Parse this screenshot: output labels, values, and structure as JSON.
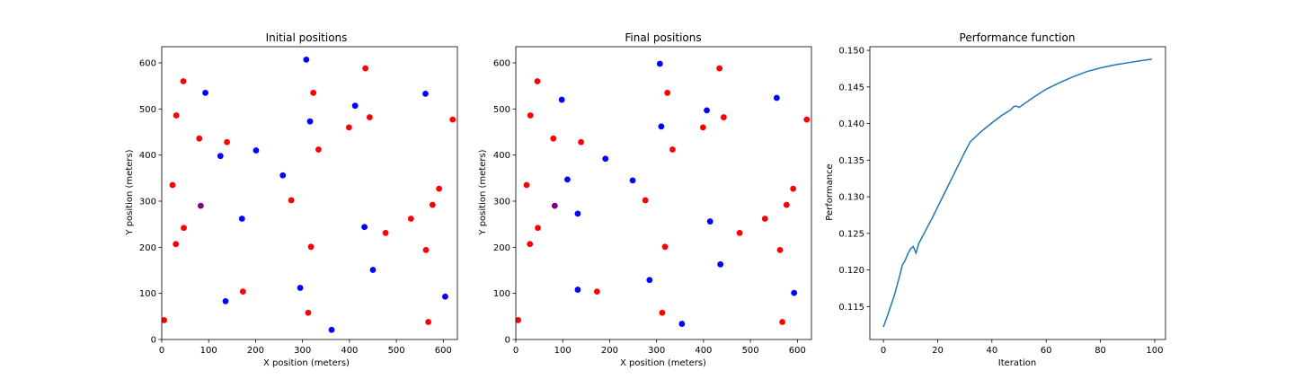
{
  "chart_data": [
    {
      "type": "scatter",
      "title": "Initial positions",
      "xlabel": "X position (meters)",
      "ylabel": "Y position (meters)",
      "xlim": [
        0,
        630
      ],
      "ylim": [
        0,
        635
      ],
      "xticks": [
        0,
        100,
        200,
        300,
        400,
        500,
        600
      ],
      "yticks": [
        0,
        100,
        200,
        300,
        400,
        500,
        600
      ],
      "grid": false,
      "legend": "none",
      "series": [
        {
          "color": "#ff0000",
          "points": [
            [
              5,
              42
            ],
            [
              23,
              335
            ],
            [
              30,
              207
            ],
            [
              31,
              486
            ],
            [
              46,
              560
            ],
            [
              47,
              242
            ],
            [
              80,
              436
            ],
            [
              139,
              428
            ],
            [
              173,
              104
            ],
            [
              276,
              302
            ],
            [
              312,
              58
            ],
            [
              318,
              201
            ],
            [
              323,
              535
            ],
            [
              334,
              412
            ],
            [
              399,
              460
            ],
            [
              434,
              588
            ],
            [
              443,
              482
            ],
            [
              477,
              231
            ],
            [
              531,
              262
            ],
            [
              563,
              194
            ],
            [
              568,
              38
            ],
            [
              577,
              292
            ],
            [
              591,
              327
            ],
            [
              620,
              477
            ]
          ]
        },
        {
          "color": "#0000ff",
          "points": [
            [
              93,
              535
            ],
            [
              125,
              398
            ],
            [
              136,
              83
            ],
            [
              171,
              262
            ],
            [
              201,
              410
            ],
            [
              258,
              356
            ],
            [
              295,
              112
            ],
            [
              308,
              607
            ],
            [
              316,
              473
            ],
            [
              362,
              21
            ],
            [
              412,
              507
            ],
            [
              432,
              244
            ],
            [
              450,
              151
            ],
            [
              562,
              533
            ],
            [
              604,
              93
            ]
          ]
        },
        {
          "color": "#800080",
          "points": [
            [
              83,
              290
            ]
          ]
        }
      ]
    },
    {
      "type": "scatter",
      "title": "Final positions",
      "xlabel": "X position (meters)",
      "ylabel": "Y position (meters)",
      "xlim": [
        0,
        630
      ],
      "ylim": [
        0,
        635
      ],
      "xticks": [
        0,
        100,
        200,
        300,
        400,
        500,
        600
      ],
      "yticks": [
        0,
        100,
        200,
        300,
        400,
        500,
        600
      ],
      "grid": false,
      "legend": "none",
      "series": [
        {
          "color": "#ff0000",
          "points": [
            [
              5,
              42
            ],
            [
              23,
              335
            ],
            [
              30,
              207
            ],
            [
              31,
              486
            ],
            [
              46,
              560
            ],
            [
              47,
              242
            ],
            [
              80,
              436
            ],
            [
              139,
              428
            ],
            [
              173,
              104
            ],
            [
              276,
              302
            ],
            [
              312,
              58
            ],
            [
              318,
              201
            ],
            [
              323,
              535
            ],
            [
              334,
              412
            ],
            [
              399,
              460
            ],
            [
              434,
              588
            ],
            [
              443,
              482
            ],
            [
              477,
              231
            ],
            [
              531,
              262
            ],
            [
              563,
              194
            ],
            [
              568,
              38
            ],
            [
              577,
              292
            ],
            [
              591,
              327
            ],
            [
              620,
              477
            ]
          ]
        },
        {
          "color": "#0000ff",
          "points": [
            [
              98,
              520
            ],
            [
              110,
              347
            ],
            [
              132,
              273
            ],
            [
              132,
              108
            ],
            [
              191,
              392
            ],
            [
              249,
              345
            ],
            [
              285,
              129
            ],
            [
              307,
              598
            ],
            [
              310,
              462
            ],
            [
              354,
              34
            ],
            [
              407,
              497
            ],
            [
              414,
              256
            ],
            [
              436,
              163
            ],
            [
              556,
              524
            ],
            [
              593,
              101
            ]
          ]
        },
        {
          "color": "#800080",
          "points": [
            [
              83,
              290
            ]
          ]
        }
      ]
    },
    {
      "type": "line",
      "title": "Performance function",
      "xlabel": "Iteration",
      "ylabel": "Performance",
      "xlim": [
        -5,
        104
      ],
      "ylim": [
        0.1105,
        0.1505
      ],
      "xticks": [
        0,
        20,
        40,
        60,
        80,
        100
      ],
      "yticks": [
        0.115,
        0.12,
        0.125,
        0.13,
        0.135,
        0.14,
        0.145,
        0.15
      ],
      "ytick_labels": [
        "0.115",
        "0.120",
        "0.125",
        "0.130",
        "0.135",
        "0.140",
        "0.145",
        "0.150"
      ],
      "grid": false,
      "legend": "none",
      "series": [
        {
          "color": "#1f77b4",
          "x": [
            0,
            2,
            4,
            6,
            7,
            8,
            9,
            10,
            11,
            12,
            13,
            15,
            18,
            22,
            26,
            30,
            32,
            34,
            36,
            40,
            44,
            47,
            48,
            49,
            50,
            55,
            60,
            65,
            70,
            75,
            80,
            85,
            90,
            95,
            99
          ],
          "y": [
            0.1122,
            0.1143,
            0.1165,
            0.1192,
            0.1207,
            0.1213,
            0.1222,
            0.1229,
            0.1232,
            0.1223,
            0.1236,
            0.125,
            0.1271,
            0.1301,
            0.1331,
            0.1361,
            0.1375,
            0.1382,
            0.1389,
            0.1401,
            0.1412,
            0.1419,
            0.1423,
            0.1424,
            0.1422,
            0.1435,
            0.1447,
            0.1456,
            0.1464,
            0.1471,
            0.1476,
            0.148,
            0.1483,
            0.1486,
            0.1488
          ]
        }
      ]
    }
  ]
}
